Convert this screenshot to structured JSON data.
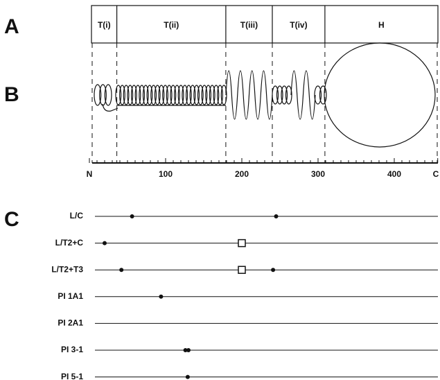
{
  "panels": {
    "a": "A",
    "b": "B",
    "c": "C"
  },
  "domains": [
    {
      "label": "T(i)",
      "start": 0,
      "end": 36
    },
    {
      "label": "T(ii)",
      "start": 36,
      "end": 179
    },
    {
      "label": "T(iii)",
      "start": 179,
      "end": 240
    },
    {
      "label": "T(iv)",
      "start": 240,
      "end": 309
    },
    {
      "label": "H",
      "start": 309,
      "end": 457
    }
  ],
  "axis": {
    "ticks": [
      {
        "value": 0,
        "label": "N"
      },
      {
        "value": 100,
        "label": "100"
      },
      {
        "value": 200,
        "label": "200"
      },
      {
        "value": 300,
        "label": "300"
      },
      {
        "value": 400,
        "label": "400"
      },
      {
        "value": 457,
        "label": "C"
      }
    ]
  },
  "mutants": [
    {
      "label": "L/C",
      "dots": [
        56,
        245
      ],
      "squares": []
    },
    {
      "label": "L/T2+C",
      "dots": [
        20
      ],
      "squares": [
        200
      ]
    },
    {
      "label": "L/T2+T3",
      "dots": [
        42,
        241
      ],
      "squares": [
        200
      ]
    },
    {
      "label": "PI 1A1",
      "dots": [
        94
      ],
      "squares": []
    },
    {
      "label": "PI 2A1",
      "dots": [],
      "squares": []
    },
    {
      "label": "PI 3-1",
      "dots": [
        126,
        130
      ],
      "squares": []
    },
    {
      "label": "PI 5-1",
      "dots": [
        129
      ],
      "squares": []
    }
  ]
}
